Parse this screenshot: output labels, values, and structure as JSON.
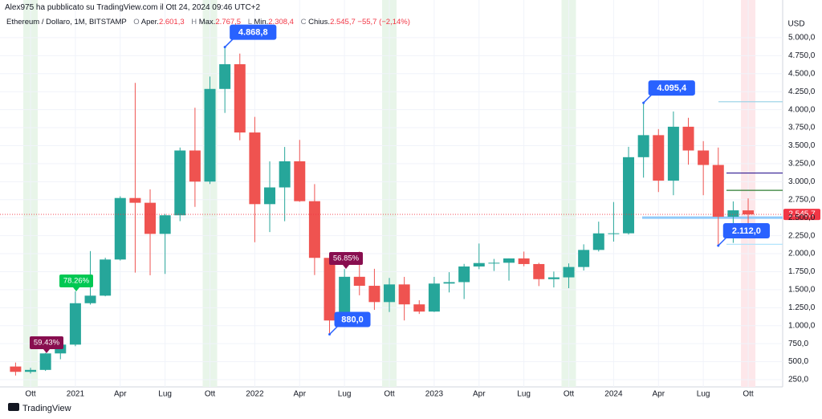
{
  "header": "Alex975 ha pubblicato su TradingView.com il Ott 24, 2024 09:46 UTC+2",
  "legend": {
    "symbol": "Ethereum / Dollaro, 1M, BITSTAMP",
    "o": "O",
    "o_name": "Aper.",
    "o_value": "2.601,3",
    "h": "H",
    "h_name": "Max.",
    "h_value": "2.767,5",
    "l": "L",
    "l_name": "Min.",
    "l_value": "2.308,4",
    "c": "C",
    "c_name": "Chius.",
    "c_value": "2.545,7",
    "change": "−55,7 (−2,14%)"
  },
  "footer": "TradingView",
  "chart_data": {
    "type": "candlestick",
    "y_label": "USD",
    "up_color": "#26a69a",
    "down_color": "#ef5350",
    "grid": true,
    "categories": [
      null,
      "Ott",
      null,
      null,
      "2021",
      null,
      null,
      "Apr",
      null,
      null,
      "Lug",
      null,
      null,
      "Ott",
      null,
      null,
      "2022",
      null,
      null,
      "Apr",
      null,
      null,
      "Lug",
      null,
      null,
      "Ott",
      null,
      null,
      "2023",
      null,
      null,
      "Apr",
      null,
      null,
      "Lug",
      null,
      null,
      "Ott",
      null,
      null,
      "2024",
      null,
      null,
      "Apr",
      null,
      null,
      "Lug",
      null,
      null,
      "Ott"
    ],
    "open": [
      433,
      359,
      386,
      615,
      737,
      1312,
      1417,
      1919,
      2773,
      2707,
      2275,
      2533,
      3433,
      3001,
      4288,
      4631,
      3683,
      2688,
      2920,
      3283,
      2729,
      1942,
      1072,
      1679,
      1554,
      1328,
      1573,
      1296,
      1196,
      1585,
      1605,
      1822,
      1870,
      1874,
      1934,
      1856,
      1646,
      1671,
      1815,
      2052,
      2282,
      2283,
      3340,
      3646,
      3014,
      3763,
      3433,
      3232,
      2513,
      2601.3
    ],
    "high": [
      488,
      415,
      622,
      752,
      1476,
      2036,
      1944,
      2797,
      4372,
      2893,
      2551,
      3474,
      4027,
      4460,
      4868.8,
      4779,
      3900,
      3282,
      3482,
      3580,
      2966,
      1972,
      1787,
      2030,
      1790,
      1663,
      1678,
      1353,
      1678,
      1743,
      1858,
      2141,
      1927,
      1935,
      2029,
      1873,
      1752,
      1865,
      2130,
      2445,
      2717,
      3484,
      4095.4,
      3730,
      3975,
      3887,
      3563,
      3474,
      2726,
      2767.5
    ],
    "low": [
      308,
      335,
      372,
      534,
      715,
      1293,
      1408,
      1905,
      1737,
      1700,
      1719,
      2452,
      2650,
      2967,
      3955,
      3575,
      2159,
      2300,
      2451,
      2720,
      1703,
      880.0,
      1003,
      1422,
      1220,
      1190,
      1073,
      1163,
      1190,
      1462,
      1370,
      1785,
      1760,
      1626,
      1825,
      1550,
      1531,
      1521,
      1766,
      2030,
      2168,
      2265,
      3056,
      2856,
      2812,
      3236,
      2812,
      2112.0,
      2150,
      2308.4
    ],
    "close": [
      359,
      386,
      615,
      737,
      1312,
      1417,
      1919,
      2773,
      2707,
      2275,
      2533,
      3433,
      3001,
      4288,
      4631,
      3683,
      2688,
      2920,
      3283,
      2729,
      1942,
      1072,
      1679,
      1554,
      1328,
      1573,
      1296,
      1196,
      1585,
      1605,
      1822,
      1870,
      1874,
      1934,
      1856,
      1646,
      1671,
      1815,
      2052,
      2282,
      2283,
      3340,
      3646,
      3014,
      3763,
      3433,
      3232,
      2513,
      2602,
      2545.7
    ],
    "ylim": [
      150,
      5300
    ],
    "yticks": [
      {
        "value": 250,
        "label": "250,0"
      },
      {
        "value": 500,
        "label": "500,0"
      },
      {
        "value": 750,
        "label": "750,0"
      },
      {
        "value": 1000,
        "label": "1.000,0"
      },
      {
        "value": 1250,
        "label": "1.250,0"
      },
      {
        "value": 1500,
        "label": "1.500,0"
      },
      {
        "value": 1750,
        "label": "1.750,0"
      },
      {
        "value": 2000,
        "label": "2.000,0"
      },
      {
        "value": 2250,
        "label": "2.250,0"
      },
      {
        "value": 2500,
        "label": "2.500,0"
      },
      {
        "value": 2750,
        "label": "2.750,0"
      },
      {
        "value": 3000,
        "label": "3.000,0"
      },
      {
        "value": 3250,
        "label": "3.250,0"
      },
      {
        "value": 3500,
        "label": "3.500,0"
      },
      {
        "value": 3750,
        "label": "3.750,0"
      },
      {
        "value": 4000,
        "label": "4.000,0"
      },
      {
        "value": 4250,
        "label": "4.250,0"
      },
      {
        "value": 4500,
        "label": "4.500,0"
      },
      {
        "value": 4750,
        "label": "4.750,0"
      },
      {
        "value": 5000,
        "label": "5.000,0"
      }
    ],
    "last_price": {
      "value": 2545.7,
      "label": "2.545,7",
      "color": "#f23645"
    },
    "callouts": [
      {
        "value": 4868.8,
        "label": "4.868,8"
      },
      {
        "value": 4095.4,
        "label": "4.095,4"
      },
      {
        "value": 2112.0,
        "label": "2.112,0"
      },
      {
        "value": 880.0,
        "label": "880,0"
      }
    ],
    "callout_color": "#2962ff",
    "badges": [
      {
        "value": 59.43,
        "label": "59.43%",
        "color": "#880e4f"
      },
      {
        "value": 78.26,
        "label": "78.26%",
        "color": "#00c853"
      },
      {
        "value": 56.85,
        "label": "56.85%",
        "color": "#880e4f"
      }
    ],
    "levels": [
      {
        "value": 4110,
        "color": "#9fd4e8"
      },
      {
        "value": 3120,
        "color": "#311b92"
      },
      {
        "value": 2880,
        "color": "#2e7d32"
      },
      {
        "value": 2500,
        "color": "#90caf9"
      },
      {
        "value": 2130,
        "color": "#b3e5fc"
      }
    ]
  }
}
